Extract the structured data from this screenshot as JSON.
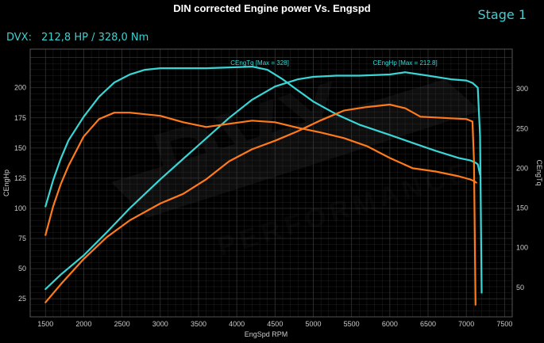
{
  "header": {
    "title": "DIN corrected Engine power Vs. Engspd",
    "stage": "Stage 1",
    "dvx_label": "DVX:",
    "dvx_value": "212,8 HP / 328,0 Nm"
  },
  "watermark": {
    "brand": "DVX",
    "sub": "PERFORMANCE"
  },
  "colors": {
    "cyan": "#3ad6d6",
    "orange": "#ff7a1a",
    "grid": "#3a3a3a",
    "background": "#000000",
    "axis_text": "#cccccc"
  },
  "chart_data": {
    "type": "line",
    "xlabel": "EngSpd RPM",
    "ylabel_left": "CEngHp",
    "ylabel_right": "CEngTq",
    "xlim": [
      1300,
      7600
    ],
    "ylim_left": [
      10,
      232
    ],
    "ylim_right": [
      13,
      350
    ],
    "grid": true,
    "x_ticks": [
      1500,
      2000,
      2500,
      3000,
      3500,
      4000,
      4500,
      5000,
      5500,
      6000,
      6500,
      7000,
      7500
    ],
    "y_ticks_left": [
      25,
      50,
      75,
      100,
      125,
      150,
      175,
      200
    ],
    "y_ticks_right": [
      50,
      100,
      150,
      200,
      250,
      300
    ],
    "annotations": [
      {
        "text": "CEngTq [Max = 328]",
        "x": 4300,
        "y_axis": "right",
        "y": 328
      },
      {
        "text": "CEngHp [Max = 212.8]",
        "x": 6200,
        "y_axis": "right",
        "y": 328
      }
    ],
    "series": [
      {
        "key": "tuned_torque",
        "axis": "right",
        "color": "#3ad6d6",
        "x": [
          1500,
          1600,
          1700,
          1800,
          2000,
          2200,
          2400,
          2600,
          2800,
          3000,
          3300,
          3600,
          3900,
          4200,
          4400,
          4600,
          4800,
          5000,
          5300,
          5600,
          6000,
          6300,
          6600,
          6900,
          7050,
          7120,
          7150,
          7180
        ],
        "y": [
          152,
          185,
          212,
          235,
          265,
          290,
          308,
          318,
          324,
          326,
          326,
          326,
          327,
          328,
          324,
          312,
          298,
          284,
          268,
          255,
          242,
          232,
          222,
          213,
          210,
          207,
          205,
          192
        ]
      },
      {
        "key": "tuned_power",
        "axis": "left",
        "color": "#3ad6d6",
        "x": [
          1500,
          1700,
          2000,
          2300,
          2600,
          3000,
          3300,
          3600,
          3900,
          4200,
          4500,
          4800,
          5000,
          5300,
          5600,
          6000,
          6200,
          6500,
          6800,
          7000,
          7080,
          7150,
          7180,
          7200
        ],
        "y": [
          33,
          45,
          61,
          80,
          100,
          124,
          141,
          158,
          175,
          190,
          201,
          207,
          209,
          210,
          210,
          211,
          212.8,
          210,
          207,
          206,
          204,
          200,
          160,
          30
        ]
      },
      {
        "key": "stock_torque",
        "axis": "right",
        "color": "#ff7a1a",
        "x": [
          1500,
          1600,
          1700,
          1800,
          2000,
          2200,
          2400,
          2600,
          2800,
          3000,
          3300,
          3600,
          3900,
          4200,
          4500,
          4800,
          5100,
          5400,
          5700,
          6000,
          6300,
          6600,
          6900,
          7050,
          7100,
          7130
        ],
        "y": [
          116,
          152,
          180,
          203,
          240,
          262,
          270,
          270,
          268,
          266,
          258,
          252,
          256,
          260,
          258,
          251,
          245,
          238,
          228,
          213,
          200,
          196,
          190,
          186,
          184,
          182
        ]
      },
      {
        "key": "stock_power",
        "axis": "left",
        "color": "#ff7a1a",
        "x": [
          1500,
          1700,
          2000,
          2300,
          2600,
          3000,
          3300,
          3600,
          3900,
          4200,
          4500,
          4800,
          5100,
          5400,
          5700,
          6000,
          6200,
          6400,
          6700,
          7000,
          7080,
          7100,
          7120
        ],
        "y": [
          22,
          37,
          58,
          76,
          90,
          104,
          112,
          124,
          139,
          149,
          156,
          164,
          173,
          181,
          184,
          186,
          183,
          176,
          175,
          174,
          172,
          140,
          20
        ]
      }
    ]
  }
}
